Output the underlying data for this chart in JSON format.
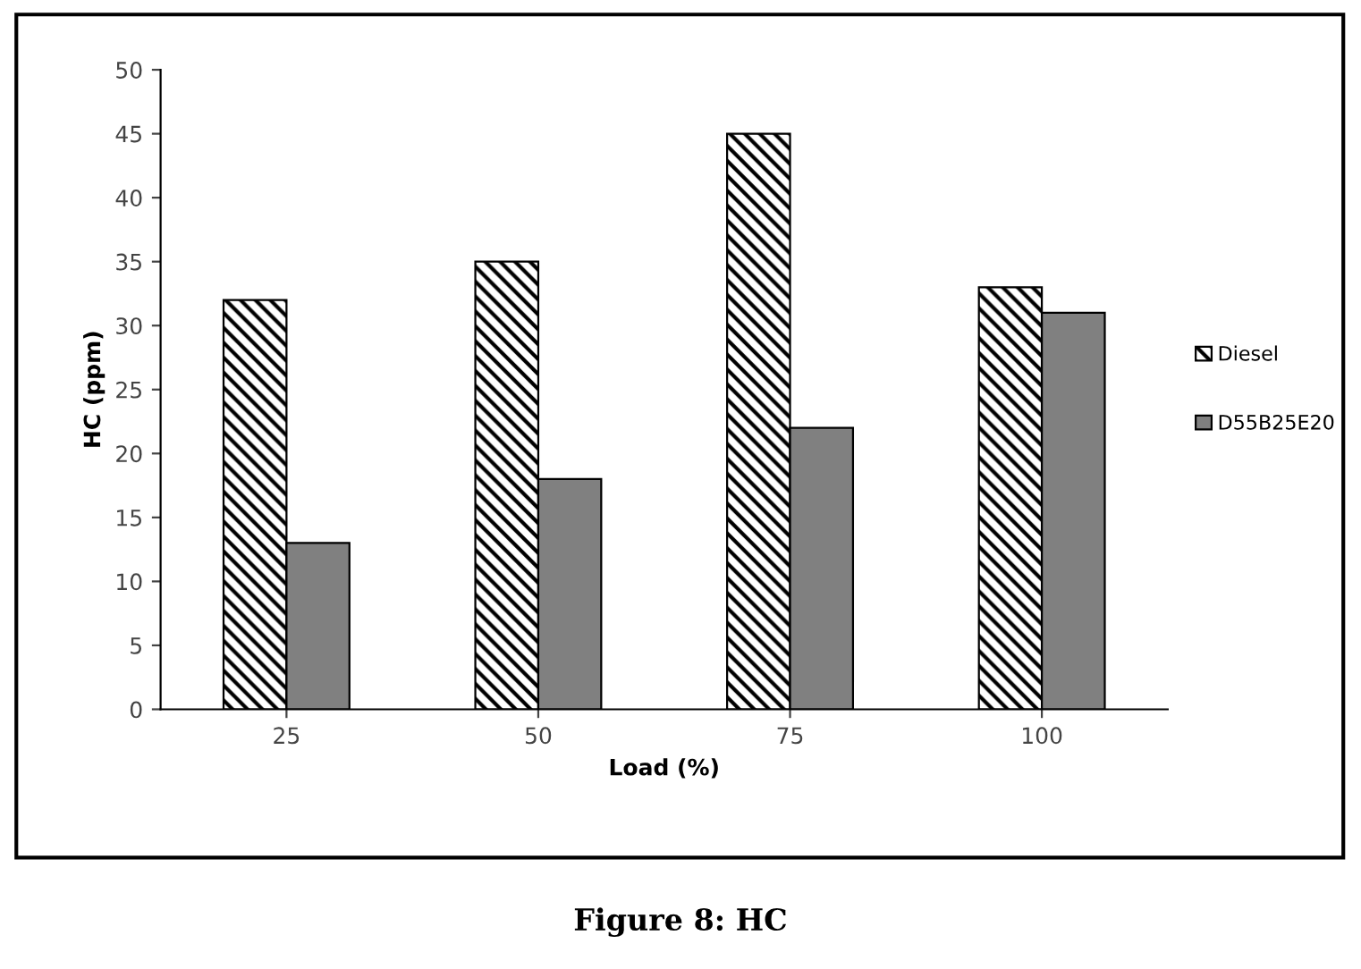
{
  "chart_data": {
    "type": "bar",
    "xlabel": "Load (%)",
    "ylabel": "HC (ppm)",
    "categories": [
      "25",
      "50",
      "75",
      "100"
    ],
    "series": [
      {
        "name": "Diesel",
        "color": "#000000",
        "values": [
          32,
          35,
          45,
          33
        ]
      },
      {
        "name": "D55B25E20",
        "color": "#808080",
        "values": [
          13,
          18,
          22,
          31
        ]
      }
    ],
    "ylim": [
      0,
      50
    ],
    "yticks": [
      0,
      5,
      10,
      15,
      20,
      25,
      30,
      35,
      40,
      45,
      50
    ],
    "grid": false,
    "legend": "right",
    "annotations": [
      "Figure 8: HC"
    ]
  }
}
